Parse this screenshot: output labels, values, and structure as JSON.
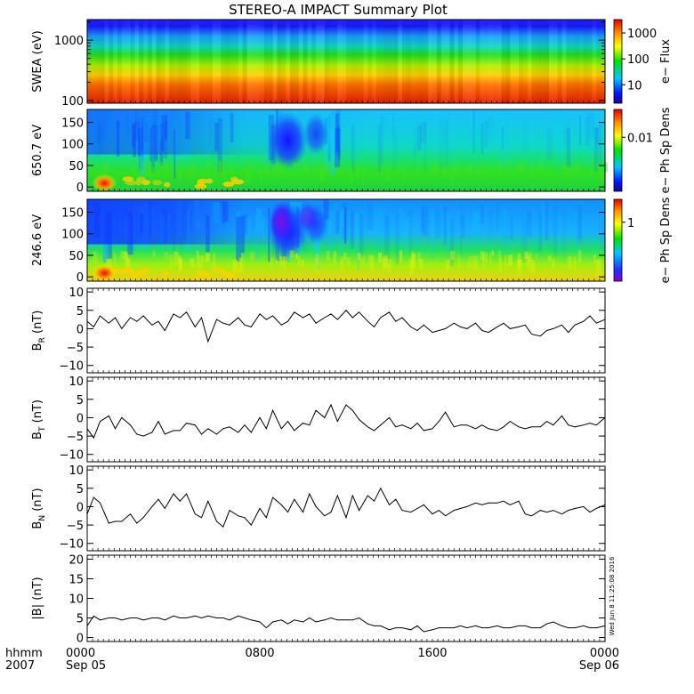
{
  "title": "STEREO-A IMPACT Summary Plot",
  "timestamp": "Wed Jun  8 11:25:08 2016",
  "xaxis": {
    "row1_label": "hhmm",
    "row2_label": "2007",
    "ticks": [
      {
        "t": 0,
        "top": "0000",
        "bottom": "Sep 05"
      },
      {
        "t": 8,
        "top": "0800",
        "bottom": ""
      },
      {
        "t": 16,
        "top": "1600",
        "bottom": ""
      },
      {
        "t": 24,
        "top": "0000",
        "bottom": "Sep 06"
      }
    ],
    "range_hours": [
      0,
      24
    ]
  },
  "spectrograms": [
    {
      "ylabel": "SWEA (eV)",
      "scale": "log",
      "ylim": [
        90,
        2200
      ],
      "yticks": [
        100,
        1000
      ],
      "ytick_labels": [
        "100",
        "1000"
      ],
      "colorbar_label": "e− Flux",
      "colorbar_ticks": [
        "10",
        "100",
        "1000"
      ],
      "colorbar_tick_fracs": [
        0.22,
        0.53,
        0.84
      ],
      "colormap": "rainbow"
    },
    {
      "ylabel": "650.7 eV",
      "scale": "linear",
      "ylim": [
        -10,
        180
      ],
      "yticks": [
        0,
        50,
        100,
        150
      ],
      "ytick_labels": [
        "0",
        "50",
        "100",
        "150"
      ],
      "colorbar_label": "e− Ph Sp Dens",
      "colorbar_ticks": [
        "0.01"
      ],
      "colorbar_tick_fracs": [
        0.66
      ],
      "colormap": "rainbow"
    },
    {
      "ylabel": "246.6 eV",
      "scale": "linear",
      "ylim": [
        -10,
        180
      ],
      "yticks": [
        0,
        50,
        100,
        150
      ],
      "ytick_labels": [
        "0",
        "50",
        "100",
        "150"
      ],
      "colorbar_label": "e− Ph Sp Dens",
      "colorbar_ticks": [
        "1"
      ],
      "colorbar_tick_fracs": [
        0.72
      ],
      "colormap": "rainbow-violet"
    }
  ],
  "chart_data": [
    {
      "type": "line",
      "ylabel_main": "B",
      "ylabel_sub": "R",
      "ylabel_unit": " (nT)",
      "ylim": [
        -12,
        11
      ],
      "yticks": [
        -10,
        -5,
        0,
        5,
        10
      ],
      "ytick_labels": [
        "−10",
        "−5",
        "0",
        "5",
        "10"
      ],
      "x": [
        0,
        0.3,
        0.6,
        1,
        1.3,
        1.6,
        2,
        2.3,
        2.6,
        3,
        3.3,
        3.6,
        4,
        4.3,
        4.6,
        5,
        5.3,
        5.6,
        6,
        6.3,
        6.6,
        7,
        7.3,
        7.6,
        8,
        8.3,
        8.6,
        9,
        9.3,
        9.6,
        10,
        10.3,
        10.6,
        11,
        11.3,
        11.6,
        12,
        12.3,
        12.6,
        13,
        13.3,
        13.6,
        14,
        14.3,
        14.6,
        15,
        15.3,
        15.6,
        16,
        16.3,
        16.6,
        17,
        17.3,
        17.6,
        18,
        18.3,
        18.6,
        19,
        19.3,
        19.6,
        20,
        20.3,
        20.6,
        21,
        21.3,
        21.6,
        22,
        22.3,
        22.6,
        23,
        23.3,
        23.6,
        24
      ],
      "y": [
        2,
        0.5,
        3.5,
        1.5,
        3,
        0,
        3,
        2,
        3.5,
        1,
        2,
        -0.5,
        4,
        3,
        4.5,
        0.5,
        3,
        -3.5,
        2.5,
        1.5,
        1,
        3,
        1,
        0.5,
        4,
        2.5,
        3.5,
        1,
        2,
        4.5,
        3,
        4,
        1.5,
        3,
        4,
        2.5,
        5,
        3,
        4.5,
        2,
        0.5,
        3,
        4.5,
        2,
        3,
        0.5,
        -0.5,
        1,
        -1,
        -0.5,
        0,
        1.5,
        0.5,
        0,
        1.5,
        -0.5,
        -1,
        0.5,
        1.5,
        0,
        0.5,
        1,
        -1.5,
        -2,
        -0.5,
        0,
        1,
        -1,
        1,
        2,
        3.5,
        1.5,
        2.5
      ]
    },
    {
      "type": "line",
      "ylabel_main": "B",
      "ylabel_sub": "T",
      "ylabel_unit": " (nT)",
      "ylim": [
        -12,
        11
      ],
      "yticks": [
        -10,
        -5,
        0,
        5,
        10
      ],
      "ytick_labels": [
        "−10",
        "−5",
        "0",
        "5",
        "10"
      ],
      "x": [
        0,
        0.3,
        0.6,
        1,
        1.3,
        1.6,
        2,
        2.3,
        2.6,
        3,
        3.3,
        3.6,
        4,
        4.3,
        4.6,
        5,
        5.3,
        5.6,
        6,
        6.3,
        6.6,
        7,
        7.3,
        7.6,
        8,
        8.3,
        8.6,
        9,
        9.3,
        9.6,
        10,
        10.3,
        10.6,
        11,
        11.3,
        11.6,
        12,
        12.3,
        12.6,
        13,
        13.3,
        13.6,
        14,
        14.3,
        14.6,
        15,
        15.3,
        15.6,
        16,
        16.3,
        16.6,
        17,
        17.3,
        17.6,
        18,
        18.3,
        18.6,
        19,
        19.3,
        19.6,
        20,
        20.3,
        20.6,
        21,
        21.3,
        21.6,
        22,
        22.3,
        22.6,
        23,
        23.3,
        23.6,
        24
      ],
      "y": [
        -3,
        -5.5,
        -1,
        0.5,
        -3,
        0,
        -2,
        -4.5,
        -5,
        -4,
        -1,
        -4.5,
        -3.5,
        -3.5,
        -1.5,
        -2,
        -4.5,
        -3,
        -4.5,
        -3,
        -2.5,
        -4,
        -2,
        -4,
        0,
        -3,
        2,
        -3,
        -1,
        -3.5,
        -1.5,
        -2,
        2,
        0,
        3.5,
        -1,
        3.5,
        2,
        -0.5,
        -2.5,
        -3.5,
        -2,
        0,
        -2.5,
        -2,
        -3,
        -1.5,
        -3.5,
        -3,
        -1,
        1.5,
        -2.5,
        -2,
        -2,
        -3,
        -2,
        -3,
        -3.5,
        -2.5,
        -1,
        -2.5,
        -3,
        -2.5,
        -2.5,
        -1,
        -2,
        0.5,
        -2,
        -2.5,
        -2,
        -1.5,
        -2,
        0
      ]
    },
    {
      "type": "line",
      "ylabel_main": "B",
      "ylabel_sub": "N",
      "ylabel_unit": " (nT)",
      "ylim": [
        -12,
        11
      ],
      "yticks": [
        -10,
        -5,
        0,
        5,
        10
      ],
      "ytick_labels": [
        "−10",
        "−5",
        "0",
        "5",
        "10"
      ],
      "x": [
        0,
        0.3,
        0.6,
        1,
        1.3,
        1.6,
        2,
        2.3,
        2.6,
        3,
        3.3,
        3.6,
        4,
        4.3,
        4.6,
        5,
        5.3,
        5.6,
        6,
        6.3,
        6.6,
        7,
        7.3,
        7.6,
        8,
        8.3,
        8.6,
        9,
        9.3,
        9.6,
        10,
        10.3,
        10.6,
        11,
        11.3,
        11.6,
        12,
        12.3,
        12.6,
        13,
        13.3,
        13.6,
        14,
        14.3,
        14.6,
        15,
        15.3,
        15.6,
        16,
        16.3,
        16.6,
        17,
        17.3,
        17.6,
        18,
        18.3,
        18.6,
        19,
        19.3,
        19.6,
        20,
        20.3,
        20.6,
        21,
        21.3,
        21.6,
        22,
        22.3,
        22.6,
        23,
        23.3,
        23.6,
        24
      ],
      "y": [
        -2,
        2.5,
        1,
        -4.5,
        -4,
        -4,
        -2,
        -4.5,
        -3,
        0,
        2,
        -0.5,
        3.5,
        1.5,
        3.5,
        -2,
        -3,
        1.5,
        -4,
        -5.5,
        -1,
        -2.5,
        -3,
        -5,
        -0.5,
        -3,
        2.5,
        0.5,
        -1.5,
        2,
        -1.5,
        3.5,
        0,
        -2.5,
        -1.5,
        3,
        -3,
        3,
        -1,
        3,
        1.5,
        5,
        0.5,
        2,
        -1,
        -1.5,
        -0.5,
        0.5,
        -2,
        -1,
        -2.5,
        -1,
        -0.5,
        0,
        1,
        0.5,
        1,
        1,
        1.5,
        0.5,
        1.5,
        -2,
        -2.5,
        -1,
        -1.5,
        -1,
        -2,
        -1,
        -0.5,
        0,
        -1.5,
        -0.5,
        0.5
      ]
    },
    {
      "type": "line",
      "ylabel_main": "|B|",
      "ylabel_sub": "",
      "ylabel_unit": " (nT)",
      "ylim": [
        -1,
        21
      ],
      "yticks": [
        0,
        5,
        10,
        15,
        20
      ],
      "ytick_labels": [
        "0",
        "5",
        "10",
        "15",
        "20"
      ],
      "x": [
        0,
        0.3,
        0.6,
        1,
        1.3,
        1.6,
        2,
        2.3,
        2.6,
        3,
        3.3,
        3.6,
        4,
        4.3,
        4.6,
        5,
        5.3,
        5.6,
        6,
        6.3,
        6.6,
        7,
        7.3,
        7.6,
        8,
        8.3,
        8.6,
        9,
        9.3,
        9.6,
        10,
        10.3,
        10.6,
        11,
        11.3,
        11.6,
        12,
        12.3,
        12.6,
        13,
        13.3,
        13.6,
        14,
        14.3,
        14.6,
        15,
        15.3,
        15.6,
        16,
        16.3,
        16.6,
        17,
        17.3,
        17.6,
        18,
        18.3,
        18.6,
        19,
        19.3,
        19.6,
        20,
        20.3,
        20.6,
        21,
        21.3,
        21.6,
        22,
        22.3,
        22.6,
        23,
        23.3,
        23.6,
        24
      ],
      "y": [
        3,
        5.5,
        4.5,
        5,
        5,
        4.5,
        5,
        5,
        4.5,
        5,
        5,
        4.5,
        5.5,
        5,
        5,
        5.5,
        5,
        5.5,
        5,
        5,
        4.5,
        5.5,
        5,
        4.5,
        4,
        2.5,
        4,
        4.5,
        3.5,
        4.5,
        4,
        5,
        4,
        4.5,
        5,
        4.5,
        4.5,
        4.5,
        5,
        3.5,
        3,
        3,
        2,
        2.5,
        2.5,
        2,
        3,
        1.5,
        2,
        2.5,
        2.5,
        2.5,
        3,
        2.5,
        3,
        2.5,
        2.5,
        3,
        2.5,
        2.5,
        3,
        3,
        2.5,
        2.5,
        3.5,
        4,
        3,
        2.5,
        2.5,
        3,
        2.5,
        2.5,
        3
      ]
    }
  ]
}
